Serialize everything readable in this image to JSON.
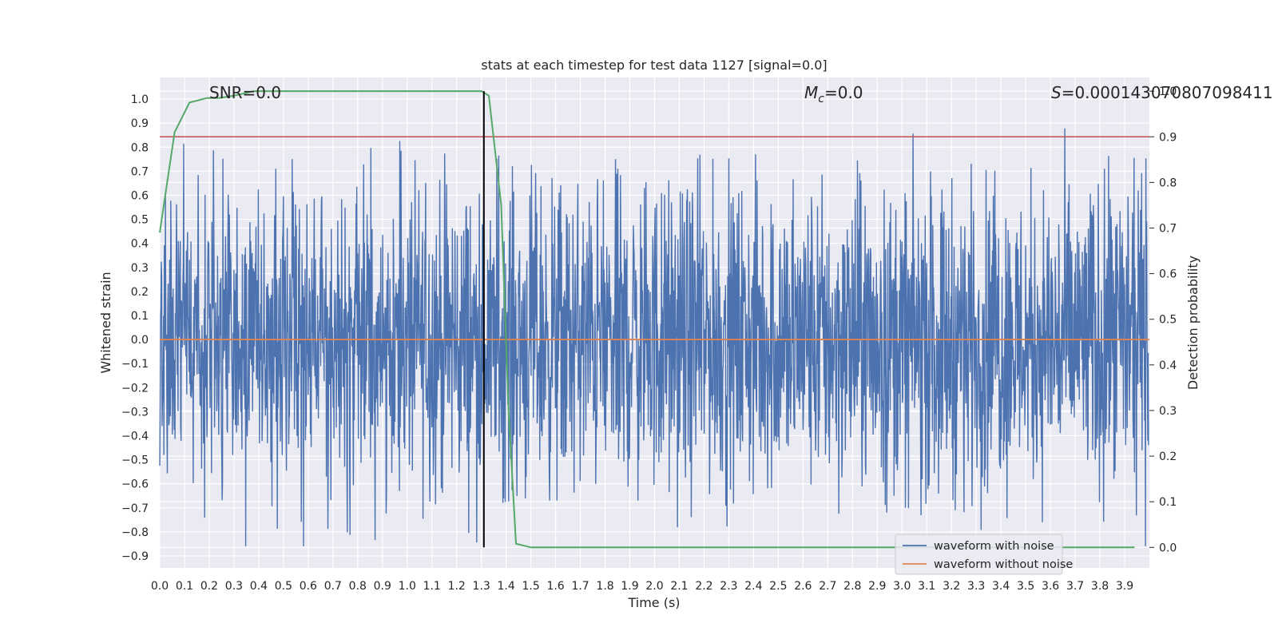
{
  "chart_data": {
    "type": "line",
    "title": "stats at each timestep for test data 1127 [signal=0.0]",
    "xlabel": "Time (s)",
    "ylabel": "Whitened strain",
    "ylabel_right": "Detection probability",
    "xlim": [
      0.0,
      4.0
    ],
    "ylim": [
      -0.95,
      1.09
    ],
    "ylim_right": [
      -0.045,
      1.03
    ],
    "xticks": [
      "0.0",
      "0.1",
      "0.2",
      "0.3",
      "0.4",
      "0.5",
      "0.6",
      "0.7",
      "0.8",
      "0.9",
      "1.0",
      "1.1",
      "1.2",
      "1.3",
      "1.4",
      "1.5",
      "1.6",
      "1.7",
      "1.8",
      "1.9",
      "2.0",
      "2.1",
      "2.2",
      "2.3",
      "2.4",
      "2.5",
      "2.6",
      "2.7",
      "2.8",
      "2.9",
      "3.0",
      "3.1",
      "3.2",
      "3.3",
      "3.4",
      "3.5",
      "3.6",
      "3.7",
      "3.8",
      "3.9"
    ],
    "yticks": [
      "-0.9",
      "-0.8",
      "-0.7",
      "-0.6",
      "-0.5",
      "-0.4",
      "-0.3",
      "-0.2",
      "-0.1",
      "0.0",
      "0.1",
      "0.2",
      "0.3",
      "0.4",
      "0.5",
      "0.6",
      "0.7",
      "0.8",
      "0.9",
      "1.0"
    ],
    "yticks_right": [
      "0.0",
      "0.1",
      "0.2",
      "0.3",
      "0.4",
      "0.5",
      "0.6",
      "0.7",
      "0.8",
      "0.9",
      "1.0"
    ],
    "annotations": {
      "snr": "SNR=0.0",
      "mc_symbol": "M",
      "mc_sub": "c",
      "mc_value": "=0.0",
      "s_symbol": "S",
      "s_value": "=0.000143070807098411"
    },
    "threshold": 0.9,
    "event_time": 1.31,
    "legend": [
      "waveform with noise",
      "waveform without noise"
    ],
    "series": [
      {
        "name": "waveform with noise",
        "axis": "left",
        "color": "#4c72b0",
        "note": "dense noisy strain, roughly symmetric about 0 with amplitude ~0.3-1.0"
      },
      {
        "name": "waveform without noise",
        "axis": "left",
        "color": "#dd8452",
        "values_constant": 0.0
      },
      {
        "name": "detection probability",
        "axis": "right",
        "color": "#55a868",
        "x": [
          0.0,
          0.06,
          0.12,
          0.19,
          0.24,
          0.3,
          0.38,
          0.5,
          0.7,
          1.0,
          1.2,
          1.3,
          1.33,
          1.38,
          1.41,
          1.44,
          1.5,
          2.0,
          3.0,
          3.94
        ],
        "values": [
          0.69,
          0.91,
          0.975,
          0.985,
          0.985,
          0.99,
          1.0,
          1.0,
          1.0,
          1.0,
          1.0,
          1.0,
          0.99,
          0.75,
          0.3,
          0.008,
          0.0,
          0.0,
          0.0,
          0.0
        ]
      }
    ],
    "threshold_color": "#c44e52",
    "event_line_color": "#000000",
    "grid": true
  }
}
